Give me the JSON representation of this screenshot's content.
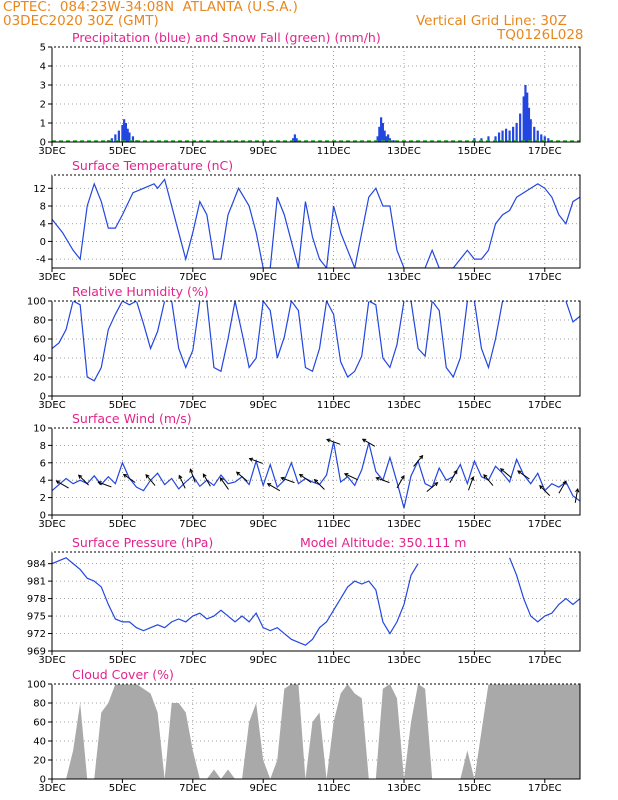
{
  "header": {
    "line1": "CPTEC:  084:23W-34:08N  ATLANTA (U.S.A.)",
    "line2": "03DEC2020 30Z (GMT)",
    "grid_note": "Vertical Grid Line: 30Z",
    "code": "TQ0126L028"
  },
  "colors": {
    "header": "#e8871e",
    "title": "#e3238c",
    "line": "#2346e0",
    "precip": "#2346e0",
    "snow": "#22b022",
    "cloud": "#a9a9a9"
  },
  "x_axis": {
    "start_day": 3,
    "end_day": 18,
    "tick_labels": [
      "3DEC",
      "5DEC",
      "7DEC",
      "9DEC",
      "11DEC",
      "13DEC",
      "15DEC",
      "17DEC"
    ],
    "tick_days": [
      3,
      5,
      7,
      9,
      11,
      13,
      15,
      17
    ]
  },
  "chart_data": [
    {
      "type": "bar",
      "name": "precipitation",
      "title": "Precipitation (blue) and Snow Fall (green) (mm/h)",
      "ylim": [
        0,
        5
      ],
      "yticks": [
        0,
        1,
        2,
        3,
        4,
        5
      ],
      "x": [
        4.6,
        4.7,
        4.8,
        4.9,
        5.0,
        5.05,
        5.1,
        5.15,
        5.2,
        5.3,
        5.4,
        9.85,
        9.9,
        9.95,
        12.25,
        12.3,
        12.35,
        12.4,
        12.45,
        12.5,
        12.55,
        12.6,
        12.7,
        15.0,
        15.2,
        15.4,
        15.6,
        15.7,
        15.8,
        15.9,
        16.0,
        16.1,
        16.2,
        16.3,
        16.4,
        16.45,
        16.5,
        16.55,
        16.6,
        16.7,
        16.8,
        16.9,
        17.0,
        17.1,
        17.2
      ],
      "values": [
        0.1,
        0.2,
        0.4,
        0.6,
        0.9,
        1.2,
        1.0,
        0.7,
        0.5,
        0.3,
        0.1,
        0.2,
        0.4,
        0.2,
        0.3,
        0.8,
        1.3,
        1.0,
        0.6,
        0.3,
        0.4,
        0.2,
        0.1,
        0.2,
        0.2,
        0.3,
        0.3,
        0.5,
        0.6,
        0.7,
        0.6,
        0.8,
        1.0,
        1.5,
        2.4,
        3.0,
        2.6,
        1.8,
        1.2,
        0.8,
        0.6,
        0.4,
        0.3,
        0.2,
        0.1
      ]
    },
    {
      "type": "line",
      "name": "surface-temperature",
      "title": "Surface Temperature (nC)",
      "ylim": [
        -6,
        15
      ],
      "yticks": [
        -4,
        0,
        4,
        8,
        12
      ],
      "x": [
        3.0,
        3.3,
        3.6,
        3.8,
        4.0,
        4.2,
        4.4,
        4.6,
        4.8,
        5.0,
        5.3,
        5.6,
        5.9,
        6.0,
        6.2,
        6.4,
        6.6,
        6.8,
        7.0,
        7.2,
        7.4,
        7.6,
        7.8,
        8.0,
        8.3,
        8.6,
        8.8,
        9.0,
        9.2,
        9.4,
        9.6,
        9.8,
        10.0,
        10.2,
        10.4,
        10.6,
        10.8,
        11.0,
        11.2,
        11.4,
        11.6,
        11.8,
        12.0,
        12.2,
        12.4,
        12.6,
        12.8,
        13.0,
        13.2,
        13.4,
        13.6,
        13.8,
        14.0,
        14.2,
        14.4,
        14.6,
        14.8,
        15.0,
        15.2,
        15.4,
        15.6,
        15.8,
        16.0,
        16.2,
        16.4,
        16.6,
        16.8,
        17.0,
        17.2,
        17.4,
        17.6,
        17.8,
        18.0
      ],
      "values": [
        5,
        2,
        -2,
        -4,
        8,
        13,
        9,
        3,
        3,
        6,
        11,
        12,
        13,
        12,
        14,
        8,
        2,
        -4,
        2,
        9,
        6,
        -4,
        -4,
        6,
        12,
        8,
        2,
        -6,
        -6,
        10,
        6,
        0,
        -6,
        9,
        1,
        -4,
        -6,
        8,
        2,
        -2,
        -6,
        2,
        10,
        12,
        8,
        8,
        -2,
        -6,
        -6,
        -6,
        -6,
        -2,
        -6,
        -6,
        -6,
        -4,
        -2,
        -4,
        -4,
        -2,
        4,
        6,
        7,
        10,
        11,
        12,
        13,
        12,
        10,
        6,
        4,
        9,
        10
      ]
    },
    {
      "type": "line",
      "name": "relative-humidity",
      "title": "Relative Humidity (%)",
      "ylim": [
        0,
        100
      ],
      "yticks": [
        0,
        20,
        40,
        60,
        80,
        100
      ],
      "x": [
        3.0,
        3.2,
        3.4,
        3.6,
        3.8,
        4.0,
        4.2,
        4.4,
        4.6,
        4.8,
        5.0,
        5.2,
        5.4,
        5.6,
        5.8,
        6.0,
        6.2,
        6.4,
        6.6,
        6.8,
        7.0,
        7.2,
        7.4,
        7.6,
        7.8,
        8.0,
        8.2,
        8.4,
        8.6,
        8.8,
        9.0,
        9.2,
        9.4,
        9.6,
        9.8,
        10.0,
        10.2,
        10.4,
        10.6,
        10.8,
        11.0,
        11.2,
        11.4,
        11.6,
        11.8,
        12.0,
        12.2,
        12.4,
        12.6,
        12.8,
        13.0,
        13.2,
        13.4,
        13.6,
        13.8,
        14.0,
        14.2,
        14.4,
        14.6,
        14.8,
        15.0,
        15.2,
        15.4,
        15.6,
        15.8,
        16.0,
        16.2,
        16.4,
        16.6,
        16.8,
        17.0,
        17.2,
        17.4,
        17.6,
        17.8,
        18.0
      ],
      "values": [
        50,
        56,
        70,
        100,
        96,
        20,
        16,
        30,
        70,
        86,
        100,
        96,
        100,
        76,
        50,
        68,
        100,
        100,
        50,
        30,
        48,
        100,
        100,
        30,
        26,
        60,
        100,
        66,
        30,
        40,
        100,
        90,
        40,
        62,
        100,
        90,
        30,
        26,
        50,
        100,
        86,
        36,
        20,
        26,
        42,
        100,
        96,
        40,
        30,
        54,
        100,
        100,
        50,
        42,
        100,
        90,
        30,
        20,
        40,
        100,
        100,
        50,
        30,
        60,
        100,
        100,
        100,
        100,
        100,
        100,
        100,
        100,
        100,
        100,
        78,
        84
      ]
    },
    {
      "type": "line",
      "name": "surface-wind",
      "title": "Surface Wind (m/s)",
      "ylim": [
        0,
        10
      ],
      "yticks": [
        0,
        2,
        4,
        6,
        8,
        10
      ],
      "x": [
        3.0,
        3.2,
        3.4,
        3.6,
        3.8,
        4.0,
        4.2,
        4.4,
        4.6,
        4.8,
        5.0,
        5.2,
        5.4,
        5.6,
        5.8,
        6.0,
        6.2,
        6.4,
        6.6,
        6.8,
        7.0,
        7.2,
        7.4,
        7.6,
        7.8,
        8.0,
        8.2,
        8.4,
        8.6,
        8.8,
        9.0,
        9.2,
        9.4,
        9.6,
        9.8,
        10.0,
        10.2,
        10.4,
        10.6,
        10.8,
        11.0,
        11.2,
        11.4,
        11.6,
        11.8,
        12.0,
        12.2,
        12.4,
        12.6,
        12.8,
        13.0,
        13.2,
        13.4,
        13.6,
        13.8,
        14.0,
        14.2,
        14.4,
        14.6,
        14.8,
        15.0,
        15.2,
        15.4,
        15.6,
        15.8,
        16.0,
        16.2,
        16.4,
        16.6,
        16.8,
        17.0,
        17.2,
        17.4,
        17.6,
        17.8,
        18.0
      ],
      "values": [
        2.8,
        3.5,
        4.2,
        3.6,
        4.0,
        3.6,
        4.5,
        3.5,
        4.4,
        3.6,
        6.0,
        4.2,
        3.2,
        2.8,
        4.0,
        4.8,
        3.5,
        4.2,
        3.0,
        3.8,
        4.5,
        3.3,
        4.0,
        3.4,
        4.6,
        3.6,
        3.8,
        4.4,
        3.5,
        6.2,
        3.4,
        5.8,
        3.2,
        4.0,
        6.0,
        3.6,
        4.2,
        3.8,
        3.5,
        4.6,
        8.4,
        3.8,
        4.4,
        3.4,
        5.2,
        8.3,
        5.0,
        4.0,
        6.6,
        3.8,
        0.8,
        4.5,
        6.2,
        3.6,
        3.2,
        5.4,
        4.0,
        4.4,
        5.8,
        3.6,
        6.2,
        4.4,
        4.0,
        5.6,
        4.8,
        3.8,
        6.4,
        4.6,
        3.6,
        4.8,
        2.8,
        3.6,
        3.2,
        3.8,
        2.2,
        1.6
      ],
      "arrow_days": [
        3.3,
        3.9,
        4.5,
        5.2,
        5.8,
        6.7,
        7.0,
        7.4,
        7.9,
        8.4,
        8.8,
        9.3,
        9.7,
        10.2,
        10.6,
        11.0,
        11.5,
        12.0,
        12.4,
        12.9,
        13.4,
        13.8,
        14.4,
        14.9,
        15.4,
        15.9,
        16.4,
        17.0,
        17.5,
        17.9
      ],
      "arrow_angles": [
        210,
        225,
        200,
        215,
        230,
        245,
        250,
        240,
        235,
        220,
        200,
        210,
        200,
        215,
        225,
        200,
        205,
        210,
        200,
        300,
        310,
        320,
        300,
        290,
        230,
        220,
        215,
        225,
        300,
        280
      ]
    },
    {
      "type": "line",
      "name": "surface-pressure",
      "title": "Surface Pressure (hPa)",
      "annotation": "Model Altitude: 350.111 m",
      "ylim": [
        969,
        986
      ],
      "yticks": [
        969,
        972,
        975,
        978,
        981,
        984
      ],
      "x": [
        3.0,
        3.2,
        3.4,
        3.6,
        3.8,
        4.0,
        4.2,
        4.4,
        4.6,
        4.8,
        5.0,
        5.2,
        5.4,
        5.6,
        5.8,
        6.0,
        6.2,
        6.4,
        6.6,
        6.8,
        7.0,
        7.2,
        7.4,
        7.6,
        7.8,
        8.0,
        8.2,
        8.4,
        8.6,
        8.8,
        9.0,
        9.2,
        9.4,
        9.6,
        9.8,
        10.0,
        10.2,
        10.4,
        10.6,
        10.8,
        11.0,
        11.2,
        11.4,
        11.6,
        11.8,
        12.0,
        12.2,
        12.4,
        12.6,
        12.8,
        13.0,
        13.2,
        13.4
      ],
      "values": [
        984,
        984.5,
        985,
        984,
        983,
        981.5,
        981,
        980,
        977,
        974.5,
        974,
        974,
        973,
        972.5,
        973,
        973.5,
        973,
        974,
        974.5,
        974,
        975,
        975.5,
        974.5,
        975,
        976,
        975,
        974,
        975,
        974,
        975.5,
        973,
        972.5,
        973,
        972,
        971,
        970.5,
        970,
        971,
        973,
        974,
        976,
        978,
        980,
        981,
        980.5,
        981,
        979.5,
        974,
        972,
        974,
        977,
        982,
        984
      ],
      "x2": [
        16.0,
        16.2,
        16.4,
        16.6,
        16.8,
        17.0,
        17.2,
        17.4,
        17.6,
        17.8,
        18.0
      ],
      "values2": [
        985,
        982,
        978,
        975,
        974,
        975,
        975.5,
        977,
        978,
        977,
        978
      ]
    },
    {
      "type": "area",
      "name": "cloud-cover",
      "title": "Cloud Cover (%)",
      "ylim": [
        0,
        100
      ],
      "yticks": [
        0,
        20,
        40,
        60,
        80,
        100
      ],
      "x": [
        3.0,
        3.2,
        3.4,
        3.6,
        3.8,
        4.0,
        4.2,
        4.4,
        4.6,
        4.8,
        5.0,
        5.2,
        5.4,
        5.6,
        5.8,
        6.0,
        6.2,
        6.4,
        6.6,
        6.8,
        7.0,
        7.2,
        7.4,
        7.6,
        7.8,
        8.0,
        8.2,
        8.4,
        8.6,
        8.8,
        9.0,
        9.2,
        9.4,
        9.6,
        9.8,
        10.0,
        10.2,
        10.4,
        10.6,
        10.8,
        11.0,
        11.2,
        11.4,
        11.6,
        11.8,
        12.0,
        12.2,
        12.4,
        12.6,
        12.8,
        13.0,
        13.2,
        13.4,
        13.6,
        13.8,
        14.0,
        14.2,
        14.4,
        14.6,
        14.8,
        15.0,
        15.2,
        15.4,
        15.6,
        15.8,
        16.0,
        16.2,
        16.4,
        16.6,
        16.8,
        17.0,
        17.2,
        17.4,
        17.6,
        17.8,
        18.0
      ],
      "values": [
        0,
        0,
        0,
        30,
        80,
        0,
        0,
        70,
        80,
        100,
        100,
        100,
        100,
        95,
        90,
        70,
        0,
        80,
        80,
        70,
        30,
        0,
        0,
        10,
        0,
        10,
        0,
        0,
        60,
        80,
        20,
        0,
        20,
        95,
        100,
        100,
        0,
        60,
        70,
        0,
        60,
        90,
        100,
        90,
        85,
        0,
        0,
        95,
        100,
        85,
        0,
        60,
        100,
        95,
        0,
        0,
        0,
        0,
        0,
        30,
        0,
        50,
        100,
        100,
        100,
        100,
        100,
        100,
        100,
        100,
        100,
        100,
        100,
        100,
        100,
        100
      ]
    }
  ]
}
